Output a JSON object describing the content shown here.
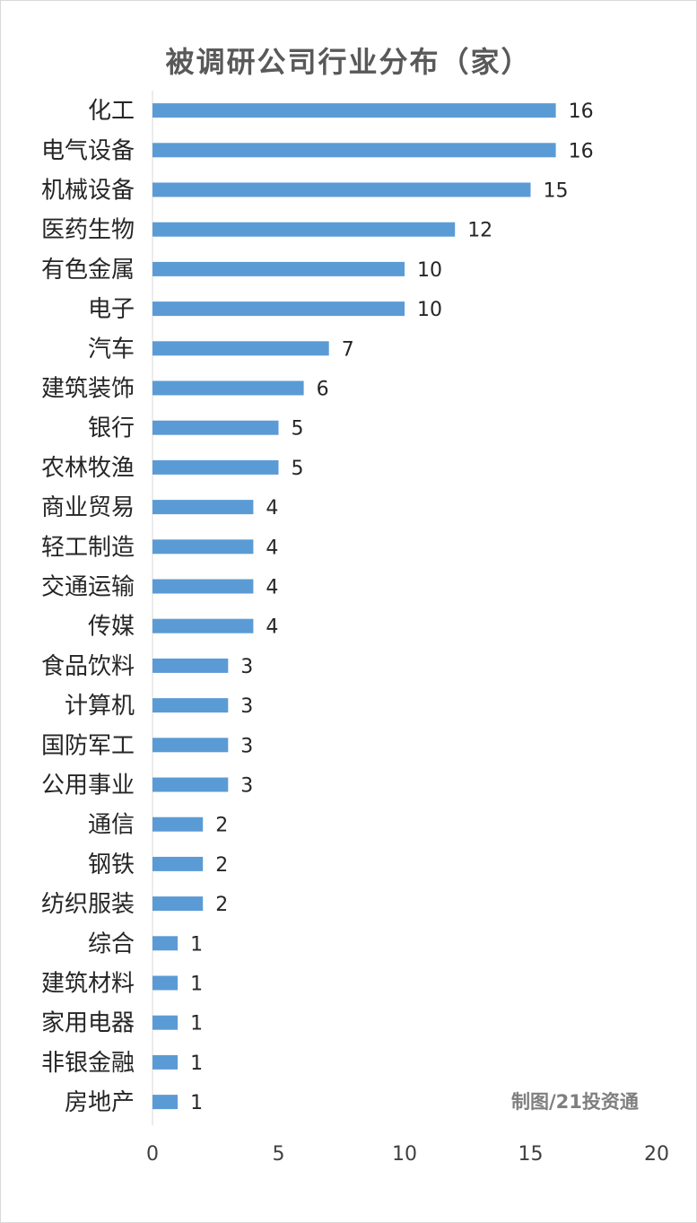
{
  "chart_data": {
    "type": "bar",
    "orientation": "horizontal",
    "title": "被调研公司行业分布（家）",
    "categories": [
      "化工",
      "电气设备",
      "机械设备",
      "医药生物",
      "有色金属",
      "电子",
      "汽车",
      "建筑装饰",
      "银行",
      "农林牧渔",
      "商业贸易",
      "轻工制造",
      "交通运输",
      "传媒",
      "食品饮料",
      "计算机",
      "国防军工",
      "公用事业",
      "通信",
      "钢铁",
      "纺织服装",
      "综合",
      "建筑材料",
      "家用电器",
      "非银金融",
      "房地产"
    ],
    "values": [
      16,
      16,
      15,
      12,
      10,
      10,
      7,
      6,
      5,
      5,
      4,
      4,
      4,
      4,
      3,
      3,
      3,
      3,
      2,
      2,
      2,
      1,
      1,
      1,
      1,
      1
    ],
    "xlim": [
      0,
      20
    ],
    "xticks": [
      0,
      5,
      10,
      15,
      20
    ],
    "bar_color": "#5b9bd5",
    "data_labels": true,
    "grid": false,
    "credit": "制图/21投资通"
  }
}
